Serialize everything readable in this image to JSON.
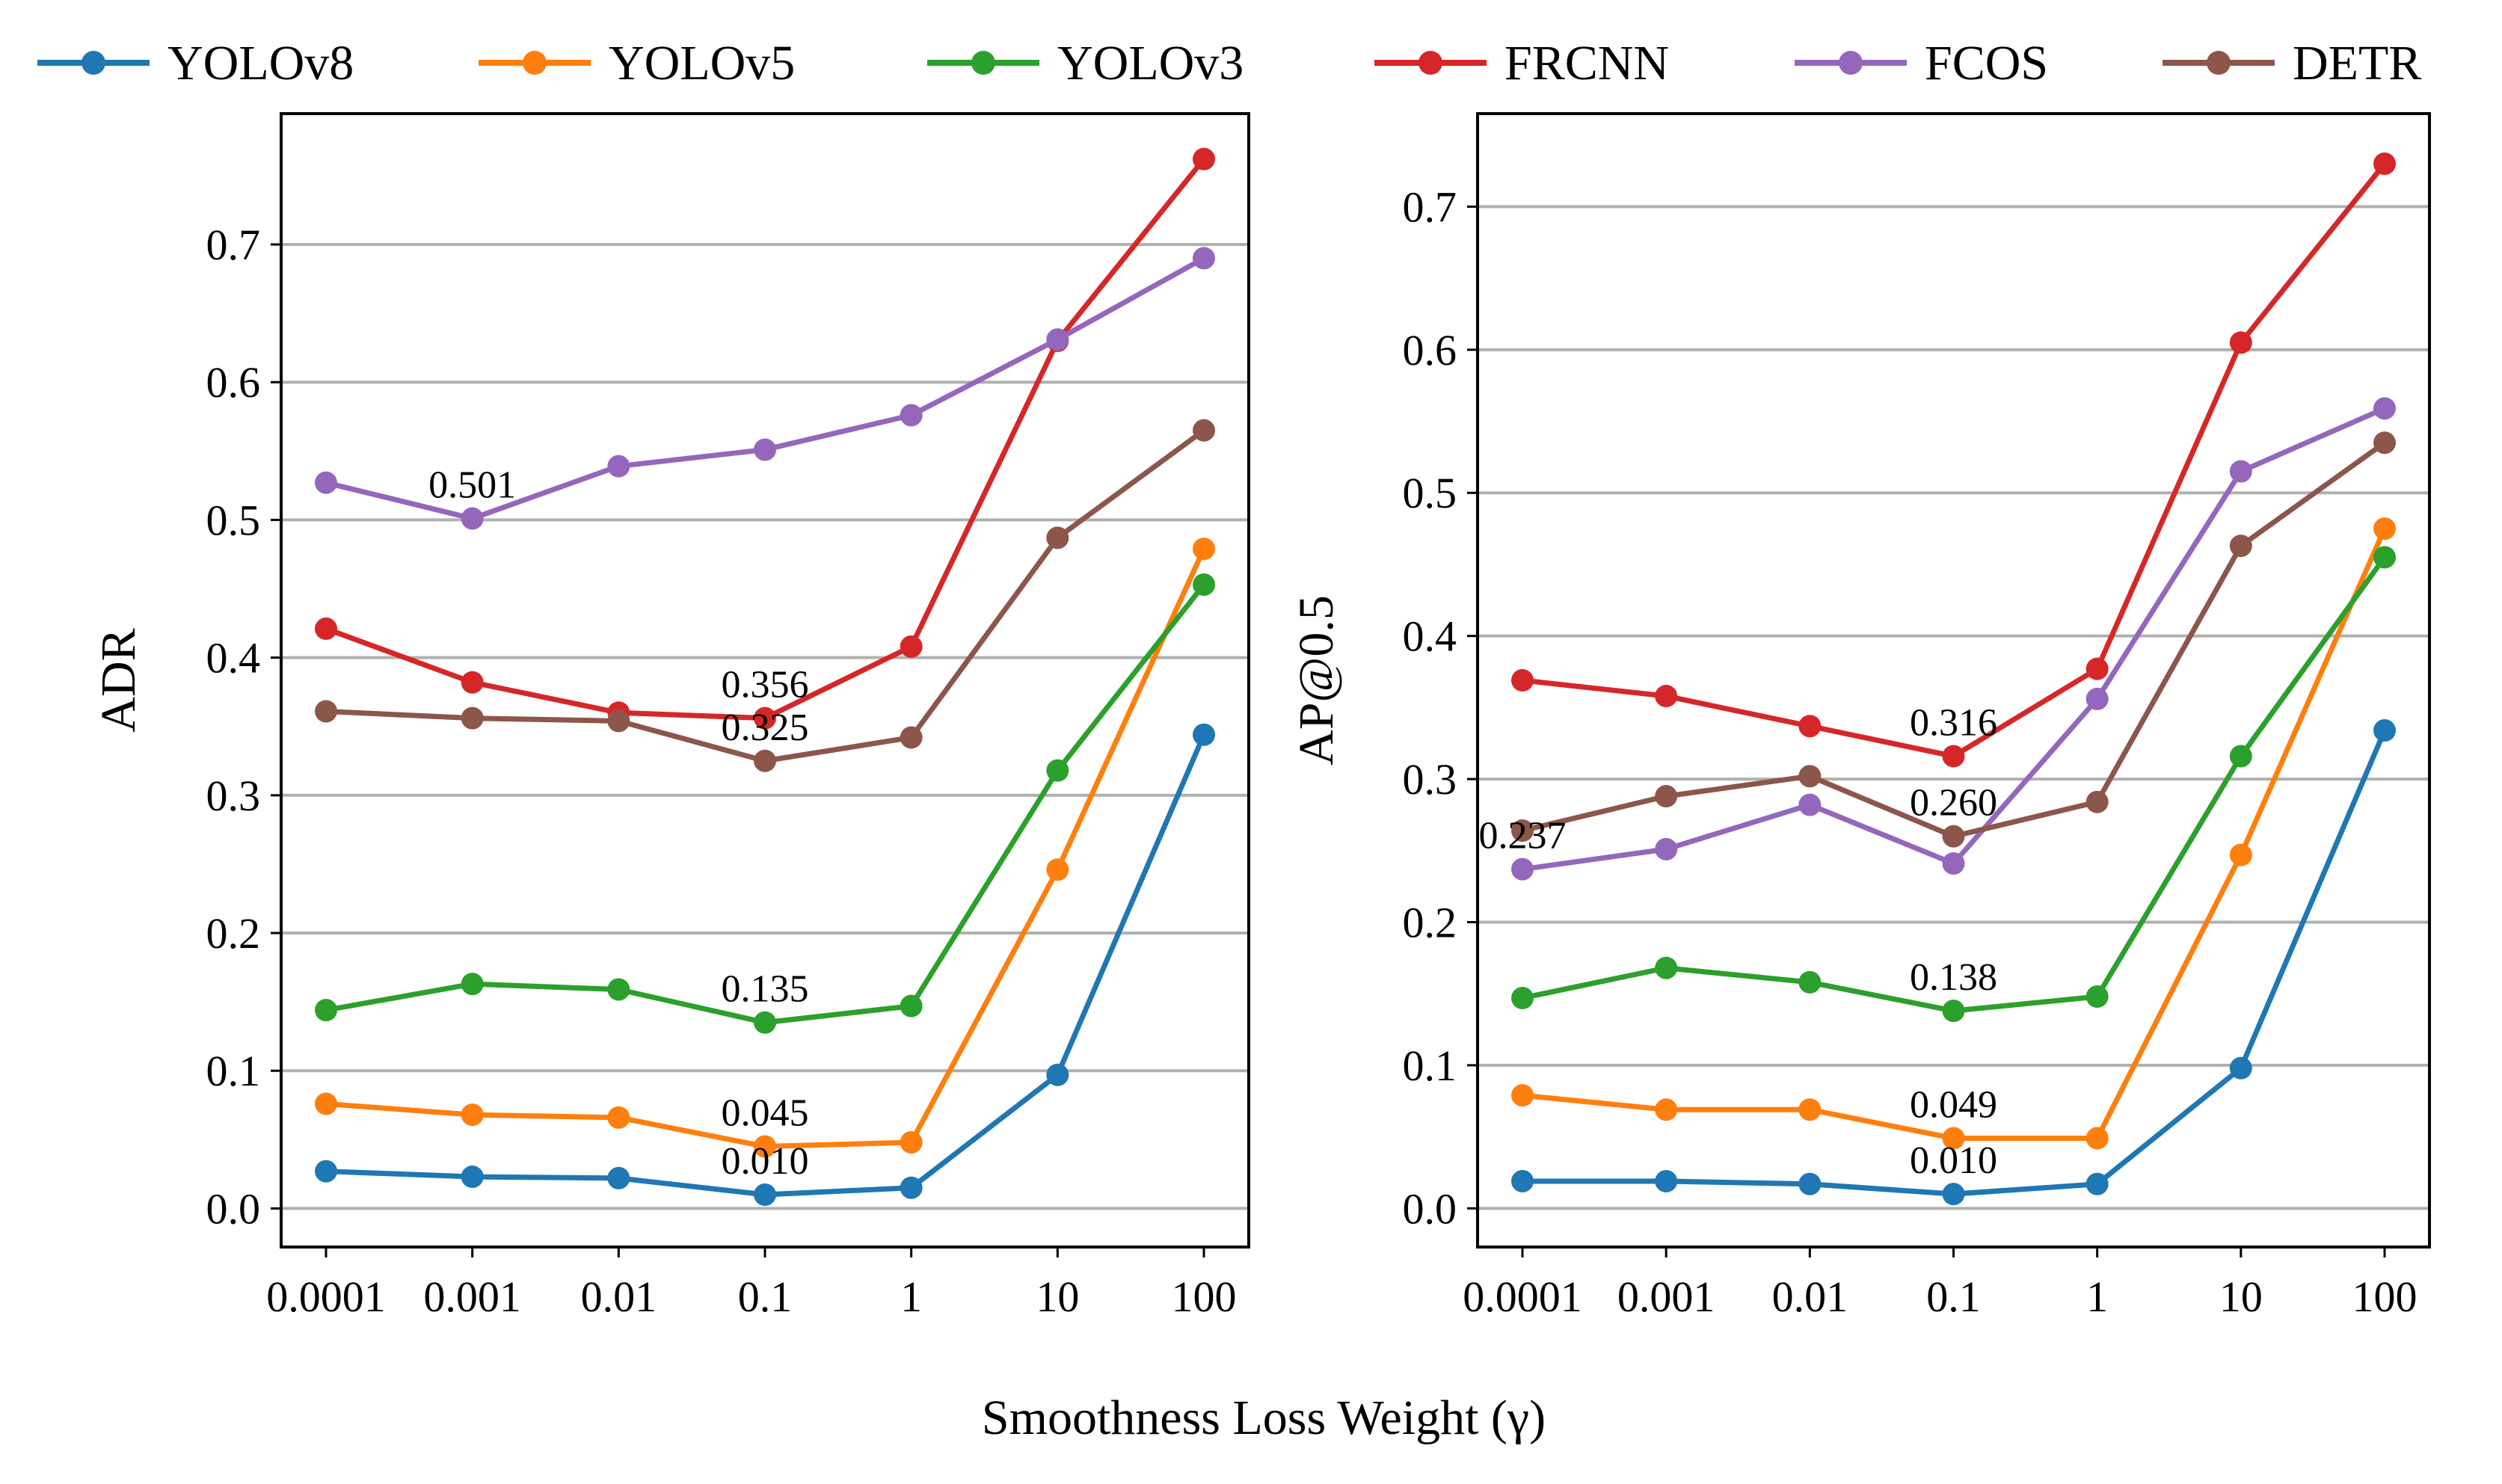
{
  "legend": {
    "entries": [
      {
        "name": "YOLOv8",
        "color": "#1f77b4"
      },
      {
        "name": "YOLOv5",
        "color": "#ff7f0e"
      },
      {
        "name": "YOLOv3",
        "color": "#2ca02c"
      },
      {
        "name": "FRCNN",
        "color": "#d62728"
      },
      {
        "name": "FCOS",
        "color": "#9467bd"
      },
      {
        "name": "DETR",
        "color": "#8c564b"
      }
    ]
  },
  "xlabel": "Smoothness Loss Weight (γ)",
  "chart_data": [
    {
      "type": "line",
      "title": "",
      "ylabel": "ADR",
      "categories": [
        "0.0001",
        "0.001",
        "0.01",
        "0.1",
        "1",
        "10",
        "100"
      ],
      "ylim": [
        -0.028,
        0.795
      ],
      "yticks": [
        0.0,
        0.1,
        0.2,
        0.3,
        0.4,
        0.5,
        0.6,
        0.7
      ],
      "ytick_labels": [
        "0.0",
        "0.1",
        "0.2",
        "0.3",
        "0.4",
        "0.5",
        "0.6",
        "0.7"
      ],
      "grid": "y",
      "series": [
        {
          "name": "YOLOv8",
          "color": "#1f77b4",
          "values": [
            0.027,
            0.023,
            0.022,
            0.01,
            0.015,
            0.097,
            0.344
          ]
        },
        {
          "name": "YOLOv5",
          "color": "#ff7f0e",
          "values": [
            0.076,
            0.068,
            0.066,
            0.045,
            0.048,
            0.246,
            0.479
          ]
        },
        {
          "name": "YOLOv3",
          "color": "#2ca02c",
          "values": [
            0.144,
            0.163,
            0.159,
            0.135,
            0.147,
            0.318,
            0.453
          ]
        },
        {
          "name": "FRCNN",
          "color": "#d62728",
          "values": [
            0.421,
            0.382,
            0.36,
            0.356,
            0.408,
            0.63,
            0.762
          ]
        },
        {
          "name": "FCOS",
          "color": "#9467bd",
          "values": [
            0.527,
            0.501,
            0.539,
            0.551,
            0.576,
            0.631,
            0.69
          ]
        },
        {
          "name": "DETR",
          "color": "#8c564b",
          "values": [
            0.361,
            0.356,
            0.354,
            0.325,
            0.342,
            0.487,
            0.565
          ]
        }
      ],
      "annotations": [
        {
          "text": "0.501",
          "x": 1,
          "y": 0.501
        },
        {
          "text": "0.356",
          "x": 3,
          "y": 0.356
        },
        {
          "text": "0.325",
          "x": 3,
          "y": 0.325
        },
        {
          "text": "0.135",
          "x": 3,
          "y": 0.135
        },
        {
          "text": "0.045",
          "x": 3,
          "y": 0.045
        },
        {
          "text": "0.010",
          "x": 3,
          "y": 0.01
        }
      ]
    },
    {
      "type": "line",
      "title": "",
      "ylabel": "AP@0.5",
      "categories": [
        "0.0001",
        "0.001",
        "0.01",
        "0.1",
        "1",
        "10",
        "100"
      ],
      "ylim": [
        -0.027,
        0.765
      ],
      "yticks": [
        0.0,
        0.1,
        0.2,
        0.3,
        0.4,
        0.5,
        0.6,
        0.7
      ],
      "ytick_labels": [
        "0.0",
        "0.1",
        "0.2",
        "0.3",
        "0.4",
        "0.5",
        "0.6",
        "0.7"
      ],
      "grid": "y",
      "series": [
        {
          "name": "YOLOv8",
          "color": "#1f77b4",
          "values": [
            0.019,
            0.019,
            0.017,
            0.01,
            0.017,
            0.098,
            0.334
          ]
        },
        {
          "name": "YOLOv5",
          "color": "#ff7f0e",
          "values": [
            0.079,
            0.069,
            0.069,
            0.049,
            0.049,
            0.247,
            0.475
          ]
        },
        {
          "name": "YOLOv3",
          "color": "#2ca02c",
          "values": [
            0.147,
            0.168,
            0.158,
            0.138,
            0.148,
            0.316,
            0.455
          ]
        },
        {
          "name": "FRCNN",
          "color": "#d62728",
          "values": [
            0.369,
            0.358,
            0.337,
            0.316,
            0.377,
            0.605,
            0.73
          ]
        },
        {
          "name": "FCOS",
          "color": "#9467bd",
          "values": [
            0.237,
            0.251,
            0.282,
            0.241,
            0.356,
            0.515,
            0.559
          ]
        },
        {
          "name": "DETR",
          "color": "#8c564b",
          "values": [
            0.264,
            0.288,
            0.302,
            0.26,
            0.284,
            0.463,
            0.535
          ]
        }
      ],
      "annotations": [
        {
          "text": "0.316",
          "x": 3,
          "y": 0.316
        },
        {
          "text": "0.237",
          "x": 0,
          "y": 0.237
        },
        {
          "text": "0.260",
          "x": 3,
          "y": 0.26
        },
        {
          "text": "0.138",
          "x": 3,
          "y": 0.138
        },
        {
          "text": "0.049",
          "x": 3,
          "y": 0.049
        },
        {
          "text": "0.010",
          "x": 3,
          "y": 0.01
        }
      ]
    }
  ]
}
